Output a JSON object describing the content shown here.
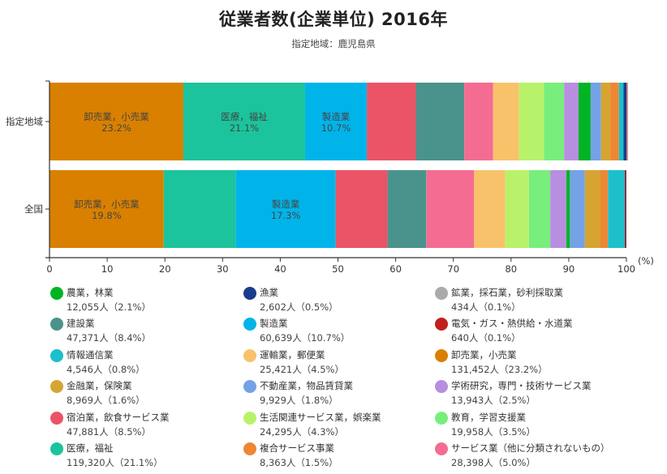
{
  "chart_data": {
    "type": "bar",
    "orientation": "horizontal",
    "stacked": true,
    "title": "従業者数(企業単位) 2016年",
    "subtitle": "指定地域：鹿児島県",
    "xlabel": "",
    "x_unit": "(%)",
    "xlim": [
      0,
      100
    ],
    "x_ticks": [
      "0",
      "10",
      "20",
      "30",
      "40",
      "50",
      "60",
      "70",
      "80",
      "90",
      "100"
    ],
    "categories": [
      "指定地域",
      "全国"
    ],
    "legend_position": "bottom",
    "series": [
      {
        "name": "卸売業，小売業",
        "color": "#D98000",
        "values": [
          23.2,
          19.8
        ],
        "legend_value": "131,452人（23.2%）",
        "labels": [
          "23.2%",
          "19.8%"
        ]
      },
      {
        "name": "医療，福祉",
        "color": "#1BC49C",
        "values": [
          21.1,
          12.5
        ],
        "legend_value": "119,320人（21.1%）",
        "labels": [
          "21.1%",
          ""
        ]
      },
      {
        "name": "製造業",
        "color": "#00B4EA",
        "values": [
          10.7,
          17.3
        ],
        "legend_value": "60,639人（10.7%）",
        "labels": [
          "10.7%",
          "17.3%"
        ]
      },
      {
        "name": "宿泊業，飲食サービス業",
        "color": "#EA5466",
        "values": [
          8.5,
          9.0
        ],
        "legend_value": "47,881人（8.5%）"
      },
      {
        "name": "建設業",
        "color": "#4A938C",
        "values": [
          8.4,
          6.7
        ],
        "legend_value": "47,371人（8.4%）"
      },
      {
        "name": "サービス業（他に分類されないもの）",
        "color": "#F46C92",
        "values": [
          5.0,
          8.3
        ],
        "legend_value": "28,398人（5.0%）"
      },
      {
        "name": "運輸業，郵便業",
        "color": "#F8C26A",
        "values": [
          4.5,
          5.4
        ],
        "legend_value": "25,421人（4.5%）"
      },
      {
        "name": "生活関連サービス業，娯楽業",
        "color": "#B8F26A",
        "values": [
          4.3,
          4.1
        ],
        "legend_value": "24,295人（4.3%）"
      },
      {
        "name": "教育，学習支援業",
        "color": "#78EE7C",
        "values": [
          3.5,
          3.7
        ],
        "legend_value": "19,958人（3.5%）"
      },
      {
        "name": "学術研究，専門・技術サービス業",
        "color": "#B78EE0",
        "values": [
          2.5,
          2.8
        ],
        "legend_value": "13,943人（2.5%）"
      },
      {
        "name": "農業，林業",
        "color": "#00B424",
        "values": [
          2.1,
          0.6
        ],
        "legend_value": "12,055人（2.1%）"
      },
      {
        "name": "不動産業，物品賃貸業",
        "color": "#74A2E6",
        "values": [
          1.8,
          2.6
        ],
        "legend_value": "9,929人（1.8%）"
      },
      {
        "name": "金融業，保険業",
        "color": "#D6A531",
        "values": [
          1.6,
          2.7
        ],
        "legend_value": "8,969人（1.6%）"
      },
      {
        "name": "複合サービス事業",
        "color": "#EE8734",
        "values": [
          1.5,
          1.3
        ],
        "legend_value": "8,363人（1.5%）"
      },
      {
        "name": "情報通信業",
        "color": "#1CBFCA",
        "values": [
          0.8,
          2.9
        ],
        "legend_value": "4,546人（0.8%）"
      },
      {
        "name": "漁業",
        "color": "#1A3C8C",
        "values": [
          0.5,
          0.1
        ],
        "legend_value": "2,602人（0.5%）"
      },
      {
        "name": "鉱業，採石業，砂利採取業",
        "color": "#AAAAAA",
        "values": [
          0.1,
          0.0
        ],
        "legend_value": "434人（0.1%）"
      },
      {
        "name": "電気・ガス・熱供給・水道業",
        "color": "#C0211C",
        "values": [
          0.1,
          0.2
        ],
        "legend_value": "640人（0.1%）"
      }
    ]
  },
  "legend_order": [
    "農業，林業",
    "漁業",
    "鉱業，採石業，砂利採取業",
    "建設業",
    "製造業",
    "電気・ガス・熱供給・水道業",
    "情報通信業",
    "運輸業，郵便業",
    "卸売業，小売業",
    "金融業，保険業",
    "不動産業，物品賃貸業",
    "学術研究，専門・技術サービス業",
    "宿泊業，飲食サービス業",
    "生活関連サービス業，娯楽業",
    "教育，学習支援業",
    "医療，福祉",
    "複合サービス事業",
    "サービス業（他に分類されないもの）"
  ]
}
